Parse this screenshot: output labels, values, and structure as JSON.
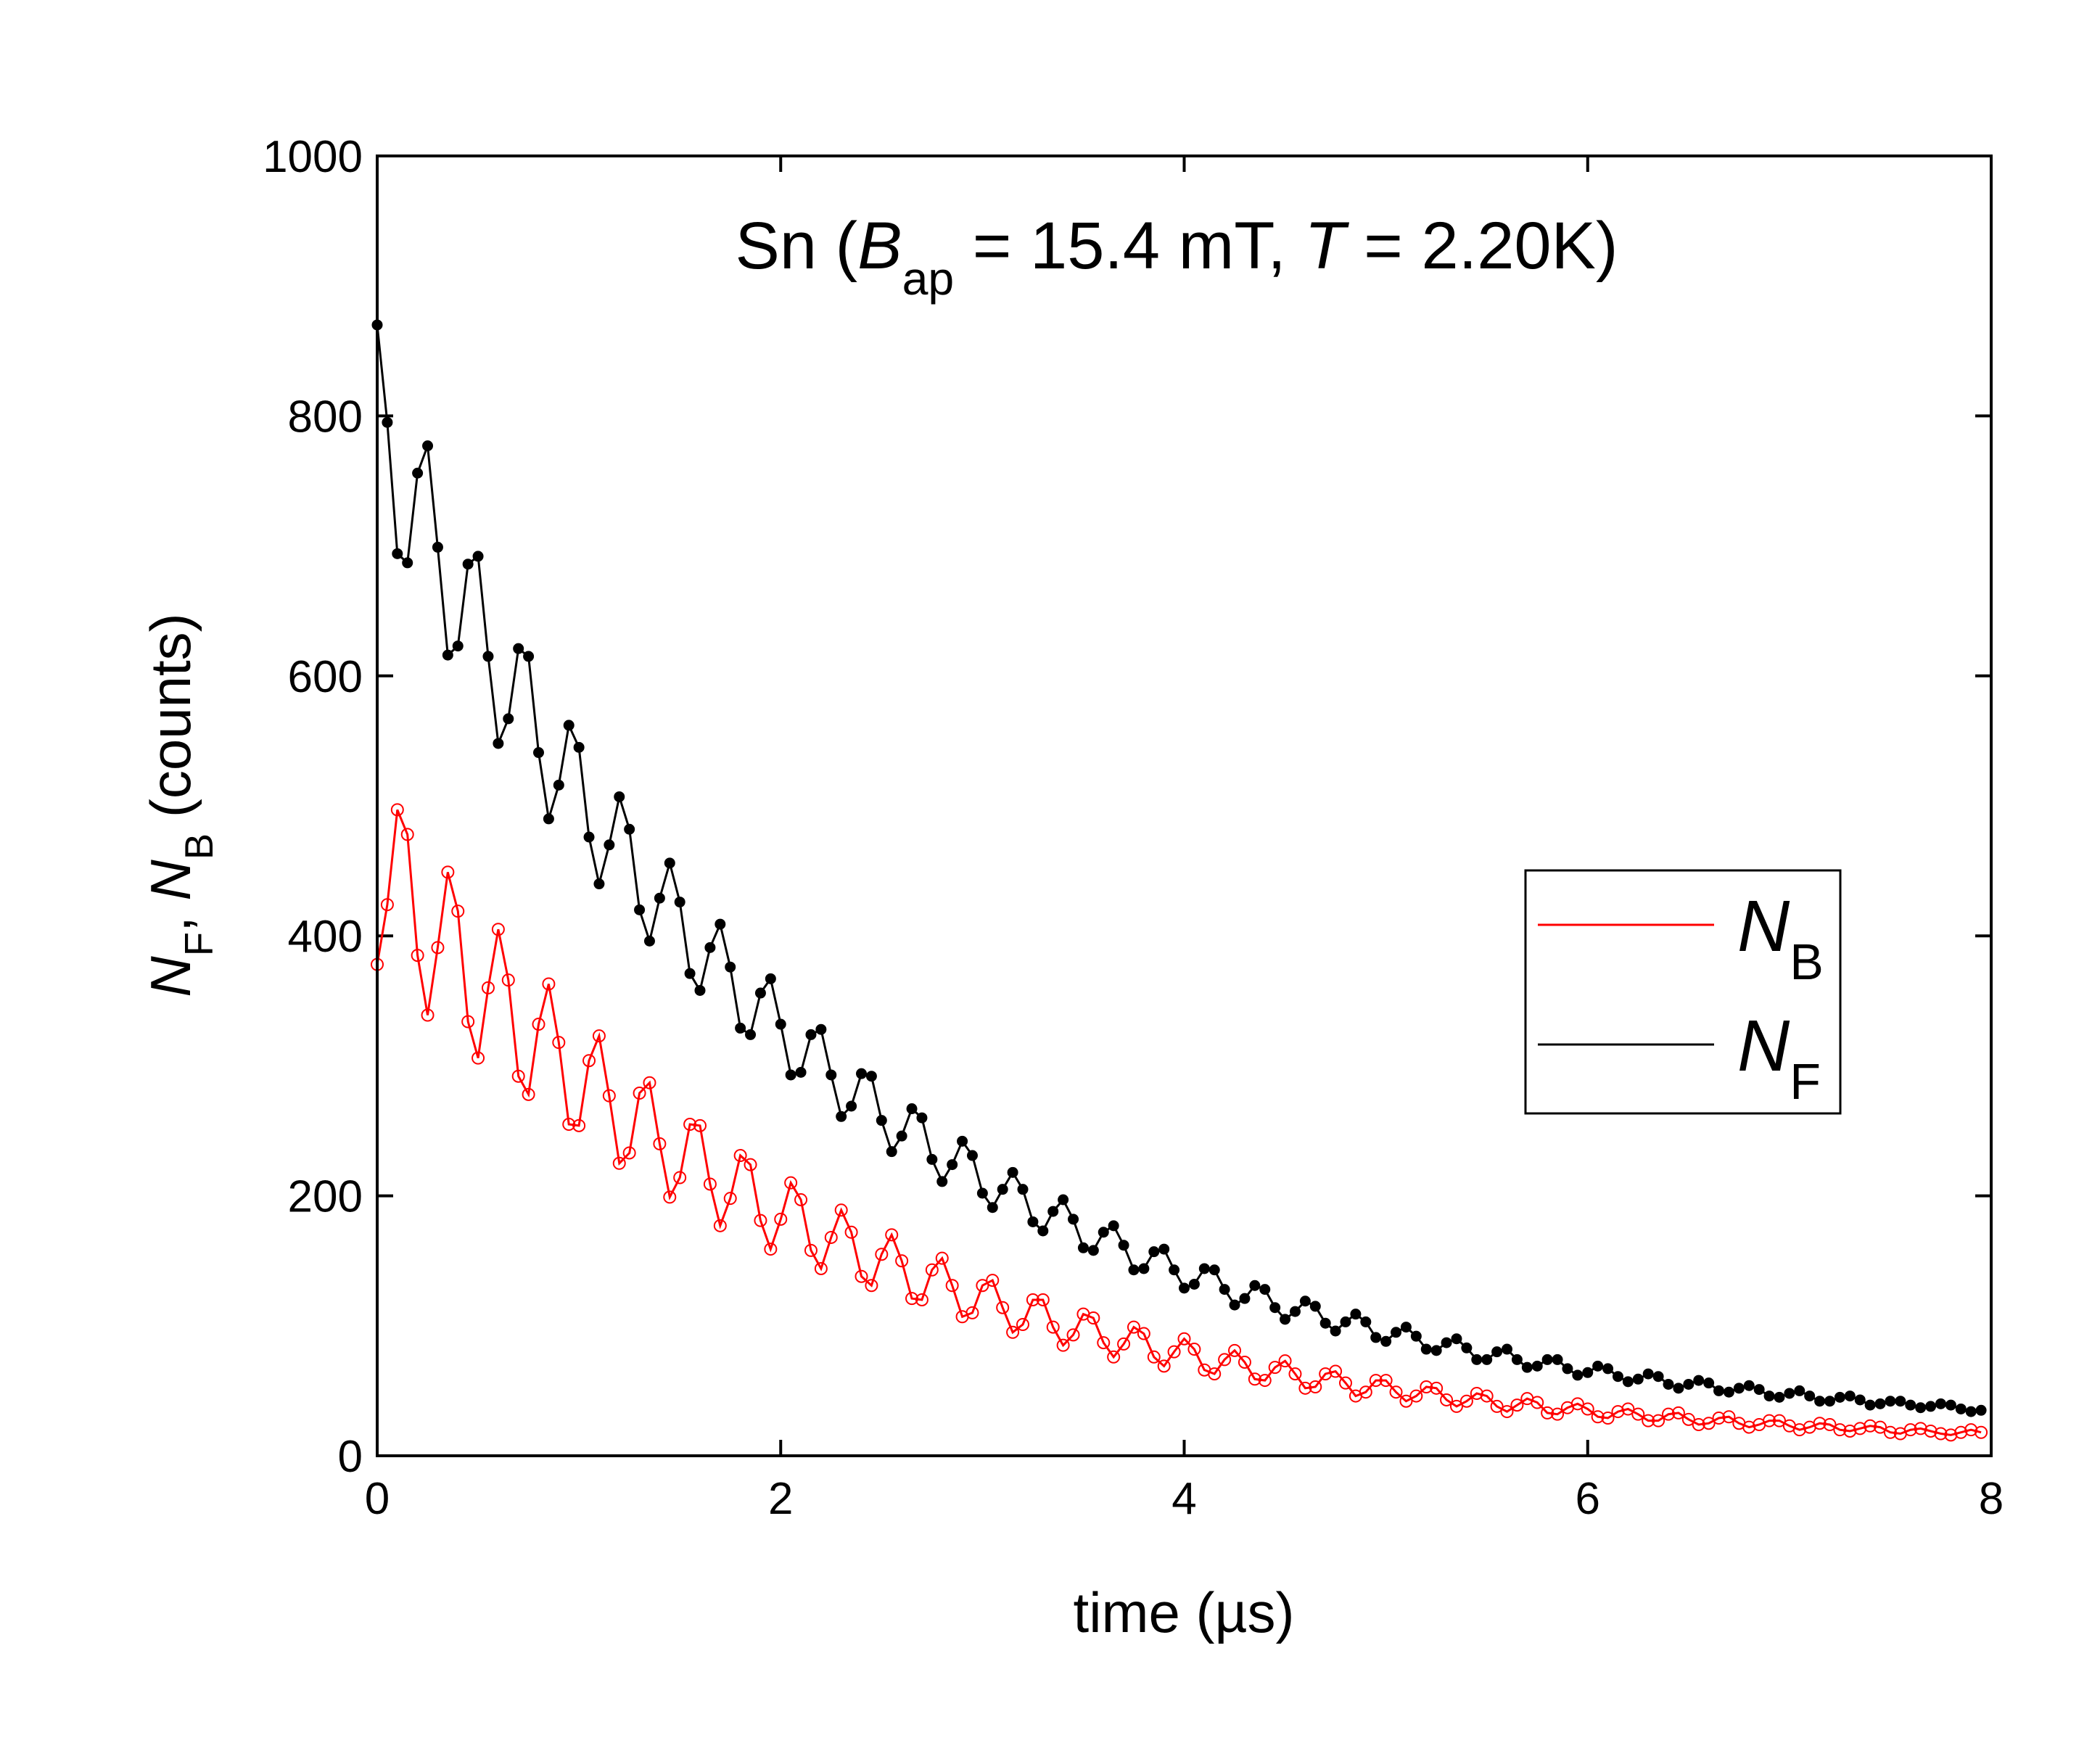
{
  "chart_data": {
    "type": "scatter-line",
    "title": [
      "Sn (",
      "B",
      "ap",
      " = 15.4 mT, ",
      "T",
      " = 2.20K)"
    ],
    "xlabel": "time (µs)",
    "ylabel": [
      "N",
      "F",
      ", ",
      "N",
      "B",
      " (counts)"
    ],
    "xlim": [
      0,
      8
    ],
    "xticks": [
      0,
      2,
      4,
      6,
      8
    ],
    "ylim": [
      0,
      1000
    ],
    "yticks": [
      0,
      200,
      400,
      600,
      800,
      1000
    ],
    "legend": "right",
    "x": [
      0,
      0.05,
      0.1,
      0.15,
      0.2,
      0.25,
      0.3,
      0.35,
      0.4,
      0.45,
      0.5,
      0.55,
      0.6,
      0.65,
      0.7,
      0.75,
      0.8,
      0.85,
      0.9,
      0.95,
      1,
      1.05,
      1.1,
      1.15,
      1.2,
      1.25,
      1.3,
      1.35,
      1.4,
      1.45,
      1.5,
      1.55,
      1.6,
      1.65,
      1.7,
      1.75,
      1.8,
      1.85,
      1.9,
      1.95,
      2,
      2.05,
      2.1,
      2.15,
      2.2,
      2.25,
      2.3,
      2.35,
      2.4,
      2.45,
      2.5,
      2.55,
      2.6,
      2.65,
      2.7,
      2.75,
      2.8,
      2.85,
      2.9,
      2.95,
      3,
      3.05,
      3.1,
      3.15,
      3.2,
      3.25,
      3.3,
      3.35,
      3.4,
      3.45,
      3.5,
      3.55,
      3.6,
      3.65,
      3.7,
      3.75,
      3.8,
      3.85,
      3.9,
      3.95,
      4,
      4.05,
      4.1,
      4.15,
      4.2,
      4.25,
      4.3,
      4.35,
      4.4,
      4.45,
      4.5,
      4.55,
      4.6,
      4.65,
      4.7,
      4.75,
      4.8,
      4.85,
      4.9,
      4.95,
      5,
      5.05,
      5.1,
      5.15,
      5.2,
      5.25,
      5.3,
      5.35,
      5.4,
      5.45,
      5.5,
      5.55,
      5.6,
      5.65,
      5.7,
      5.75,
      5.8,
      5.85,
      5.9,
      5.95,
      6,
      6.05,
      6.1,
      6.15,
      6.2,
      6.25,
      6.3,
      6.35,
      6.4,
      6.45,
      6.5,
      6.55,
      6.6,
      6.65,
      6.7,
      6.75,
      6.8,
      6.85,
      6.9,
      6.95,
      7,
      7.05,
      7.1,
      7.15,
      7.2,
      7.25,
      7.3,
      7.35,
      7.4,
      7.45,
      7.5,
      7.55,
      7.6,
      7.65,
      7.7,
      7.75,
      7.8,
      7.85,
      7.9,
      7.95
    ],
    "series": [
      {
        "name": [
          "N",
          "B"
        ],
        "color": "#ff0000",
        "marker": "open",
        "values": [
          378,
          424,
          497,
          478,
          385,
          339,
          391,
          449,
          419,
          334,
          306,
          360,
          405,
          366,
          292,
          278,
          332,
          363,
          318,
          255,
          254,
          304,
          323,
          277,
          225,
          233,
          279,
          287,
          240,
          199,
          214,
          255,
          254,
          209,
          177,
          198,
          231,
          224,
          181,
          159,
          182,
          210,
          197,
          158,
          144,
          168,
          189,
          172,
          138,
          131,
          155,
          170,
          150,
          121,
          120,
          143,
          152,
          131,
          107,
          110,
          131,
          135,
          114,
          95,
          101,
          120,
          120,
          99,
          85,
          93,
          109,
          106,
          87,
          76,
          86,
          99,
          94,
          76,
          69,
          80,
          90,
          82,
          66,
          63,
          74,
          81,
          72,
          59,
          58,
          68,
          73,
          63,
          52,
          53,
          63,
          65,
          56,
          46,
          49,
          58,
          58,
          49,
          42,
          46,
          53,
          52,
          43,
          38,
          42,
          48,
          46,
          38,
          34,
          39,
          44,
          41,
          33,
          32,
          37,
          40,
          36,
          30,
          29,
          34,
          36,
          32,
          27,
          27,
          32,
          33,
          28,
          24,
          25,
          29,
          30,
          25,
          22,
          24,
          27,
          27,
          23,
          20,
          22,
          25,
          24,
          20,
          19,
          21,
          23,
          22,
          18,
          17,
          20,
          21,
          19,
          17,
          16,
          18,
          20,
          18
        ]
      },
      {
        "name": [
          "N",
          "F"
        ],
        "color": "#000000",
        "marker": "filled",
        "values": [
          870,
          795,
          694,
          687,
          756,
          777,
          699,
          616,
          623,
          686,
          692,
          615,
          548,
          567,
          621,
          615,
          541,
          490,
          516,
          562,
          545,
          476,
          440,
          470,
          507,
          482,
          420,
          396,
          429,
          456,
          426,
          371,
          358,
          391,
          409,
          376,
          329,
          324,
          356,
          367,
          332,
          293,
          295,
          324,
          328,
          293,
          261,
          269,
          294,
          292,
          258,
          234,
          246,
          267,
          260,
          228,
          211,
          224,
          242,
          231,
          202,
          191,
          205,
          218,
          205,
          180,
          173,
          188,
          197,
          182,
          160,
          158,
          172,
          177,
          162,
          143,
          144,
          157,
          159,
          143,
          129,
          132,
          144,
          143,
          128,
          116,
          121,
          131,
          128,
          114,
          105,
          111,
          119,
          115,
          102,
          96,
          103,
          109,
          103,
          91,
          88,
          95,
          99,
          92,
          82,
          81,
          87,
          90,
          83,
          74,
          74,
          80,
          82,
          74,
          68,
          69,
          74,
          74,
          67,
          62,
          64,
          69,
          67,
          61,
          57,
          59,
          63,
          61,
          55,
          52,
          55,
          58,
          56,
          50,
          49,
          52,
          54,
          51,
          46,
          45,
          48,
          50,
          46,
          42,
          42,
          45,
          46,
          43,
          39,
          40,
          42,
          42,
          39,
          37,
          38,
          40,
          39,
          36,
          34,
          35
        ]
      }
    ]
  }
}
